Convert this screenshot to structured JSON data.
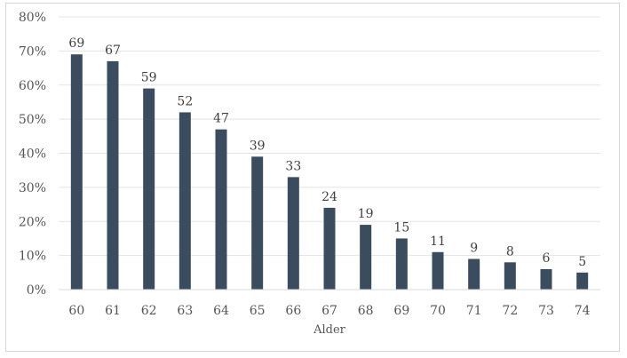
{
  "chart_data": {
    "type": "bar",
    "categories": [
      "60",
      "61",
      "62",
      "63",
      "64",
      "65",
      "66",
      "67",
      "68",
      "69",
      "70",
      "71",
      "72",
      "73",
      "74"
    ],
    "values": [
      69,
      67,
      59,
      52,
      47,
      39,
      33,
      24,
      19,
      15,
      11,
      9,
      8,
      6,
      5
    ],
    "data_labels": [
      "69",
      "67",
      "59",
      "52",
      "47",
      "39",
      "33",
      "24",
      "19",
      "15",
      "11",
      "9",
      "8",
      "6",
      "5"
    ],
    "title": "",
    "xlabel": "Alder",
    "ylabel": "",
    "ylim": [
      0,
      80
    ],
    "yticks": [
      "0%",
      "10%",
      "20%",
      "30%",
      "40%",
      "50%",
      "60%",
      "70%",
      "80%"
    ],
    "grid": true,
    "legend": "none",
    "bar_color": "#3b4c5e"
  }
}
